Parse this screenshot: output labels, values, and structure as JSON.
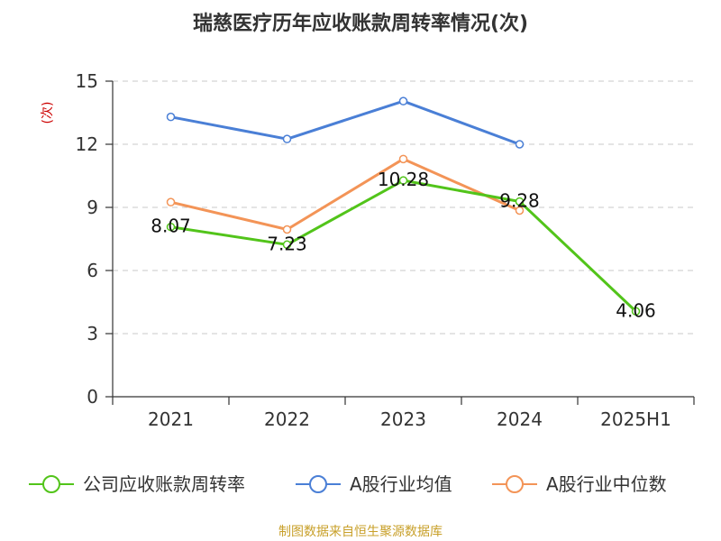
{
  "chart_data": {
    "type": "line",
    "title": "瑞慈医疗历年应收账款周转率情况(次)",
    "ylabel": "(次)",
    "xlabel": "",
    "categories": [
      "2021",
      "2022",
      "2023",
      "2024",
      "2025H1"
    ],
    "ylim": [
      0,
      15
    ],
    "yticks": [
      0,
      3,
      6,
      9,
      12,
      15
    ],
    "grid": true,
    "legend_position": "bottom",
    "series": [
      {
        "name": "公司应收账款周转率",
        "color": "#52c41a",
        "values": [
          8.07,
          7.23,
          10.28,
          9.28,
          4.06
        ],
        "labels": [
          "8.07",
          "7.23",
          "10.28",
          "9.28",
          "4.06"
        ]
      },
      {
        "name": "A股行业均值",
        "color": "#4a7fd6",
        "values": [
          13.3,
          12.25,
          14.05,
          12.0,
          null
        ]
      },
      {
        "name": "A股行业中位数",
        "color": "#f39457",
        "values": [
          9.25,
          7.95,
          11.3,
          8.85,
          null
        ]
      }
    ],
    "source": "制图数据来自恒生聚源数据库"
  }
}
